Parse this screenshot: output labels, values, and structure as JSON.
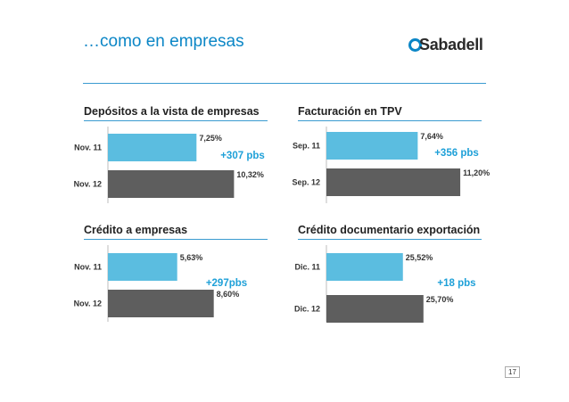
{
  "slide": {
    "title": "…como en empresas",
    "logo_text": "Sabadell",
    "page_number": "17",
    "colors": {
      "title": "#0b86c6",
      "rule": "#3a9bd0",
      "bar_2011": "#5bbde0",
      "bar_2012": "#5e5e5e",
      "delta": "#1ea0d8"
    }
  },
  "chart_data": [
    {
      "type": "bar",
      "title": "Depósitos a la vista de empresas",
      "categories": [
        "Nov. 11",
        "Nov. 12"
      ],
      "values": [
        7.25,
        10.32
      ],
      "value_labels": [
        "7,25%",
        "10,32%"
      ],
      "annotation": "+307 pbs",
      "orientation": "horizontal"
    },
    {
      "type": "bar",
      "title": "Facturación en TPV",
      "categories": [
        "Sep. 11",
        "Sep. 12"
      ],
      "values": [
        7.64,
        11.2
      ],
      "value_labels": [
        "7,64%",
        "11,20%"
      ],
      "annotation": "+356 pbs",
      "orientation": "horizontal"
    },
    {
      "type": "bar",
      "title": "Crédito a empresas",
      "categories": [
        "Nov. 11",
        "Nov. 12"
      ],
      "values": [
        5.63,
        8.6
      ],
      "value_labels": [
        "5,63%",
        "8,60%"
      ],
      "annotation": "+297pbs",
      "orientation": "horizontal"
    },
    {
      "type": "bar",
      "title": "Crédito documentario exportación",
      "categories": [
        "Dic. 11",
        "Dic. 12"
      ],
      "values": [
        25.52,
        25.7
      ],
      "value_labels": [
        "25,52%",
        "25,70%"
      ],
      "annotation": "+18 pbs",
      "orientation": "horizontal"
    }
  ]
}
